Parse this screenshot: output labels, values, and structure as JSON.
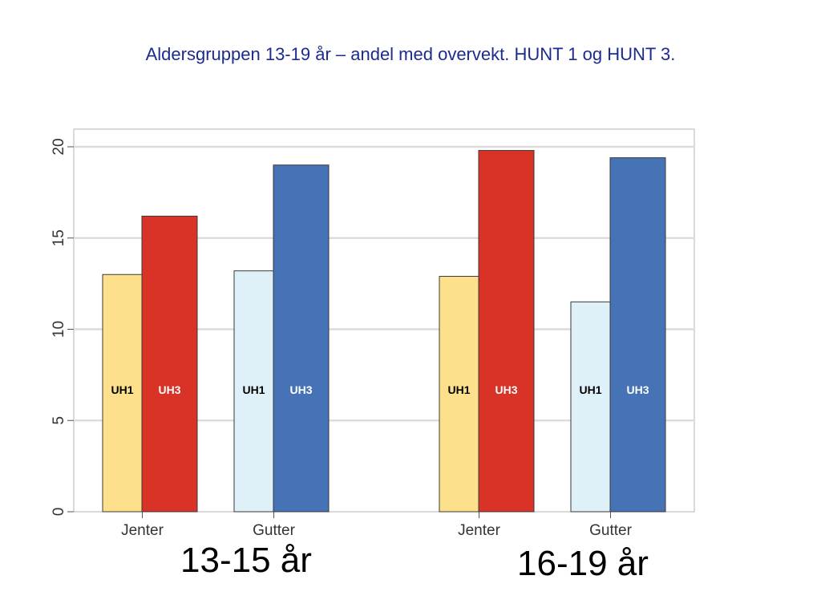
{
  "title": "Aldersgruppen 13-19 år – andel  med overvekt. HUNT 1 og HUNT 3.",
  "group_labels": [
    "13-15 år",
    "16-19 år"
  ],
  "colors": {
    "jenter_uh1": "#fde08c",
    "jenter_uh3": "#d93226",
    "gutter_uh1": "#dff1f8",
    "gutter_uh3": "#4673b6",
    "uh1_label": "#000000",
    "uh3_label": "#ffffff",
    "grid": "#dcdcdc"
  },
  "chart_data": {
    "type": "bar",
    "title": "Aldersgruppen 13-19 år – andel  med overvekt. HUNT 1 og HUNT 3.",
    "xlabel": "",
    "ylabel": "",
    "ylim": [
      0,
      21
    ],
    "yticks": [
      0,
      5,
      10,
      15,
      20
    ],
    "grid": true,
    "groups": [
      {
        "name": "13-15 år",
        "categories": [
          {
            "name": "Jenter",
            "bars": [
              {
                "label": "UH1",
                "value": 13.0
              },
              {
                "label": "UH3",
                "value": 16.2
              }
            ]
          },
          {
            "name": "Gutter",
            "bars": [
              {
                "label": "UH1",
                "value": 13.2
              },
              {
                "label": "UH3",
                "value": 19.0
              }
            ]
          }
        ]
      },
      {
        "name": "16-19 år",
        "categories": [
          {
            "name": "Jenter",
            "bars": [
              {
                "label": "UH1",
                "value": 12.9
              },
              {
                "label": "UH3",
                "value": 19.8
              }
            ]
          },
          {
            "name": "Gutter",
            "bars": [
              {
                "label": "UH1",
                "value": 11.5
              },
              {
                "label": "UH3",
                "value": 19.4
              }
            ]
          }
        ]
      }
    ]
  }
}
